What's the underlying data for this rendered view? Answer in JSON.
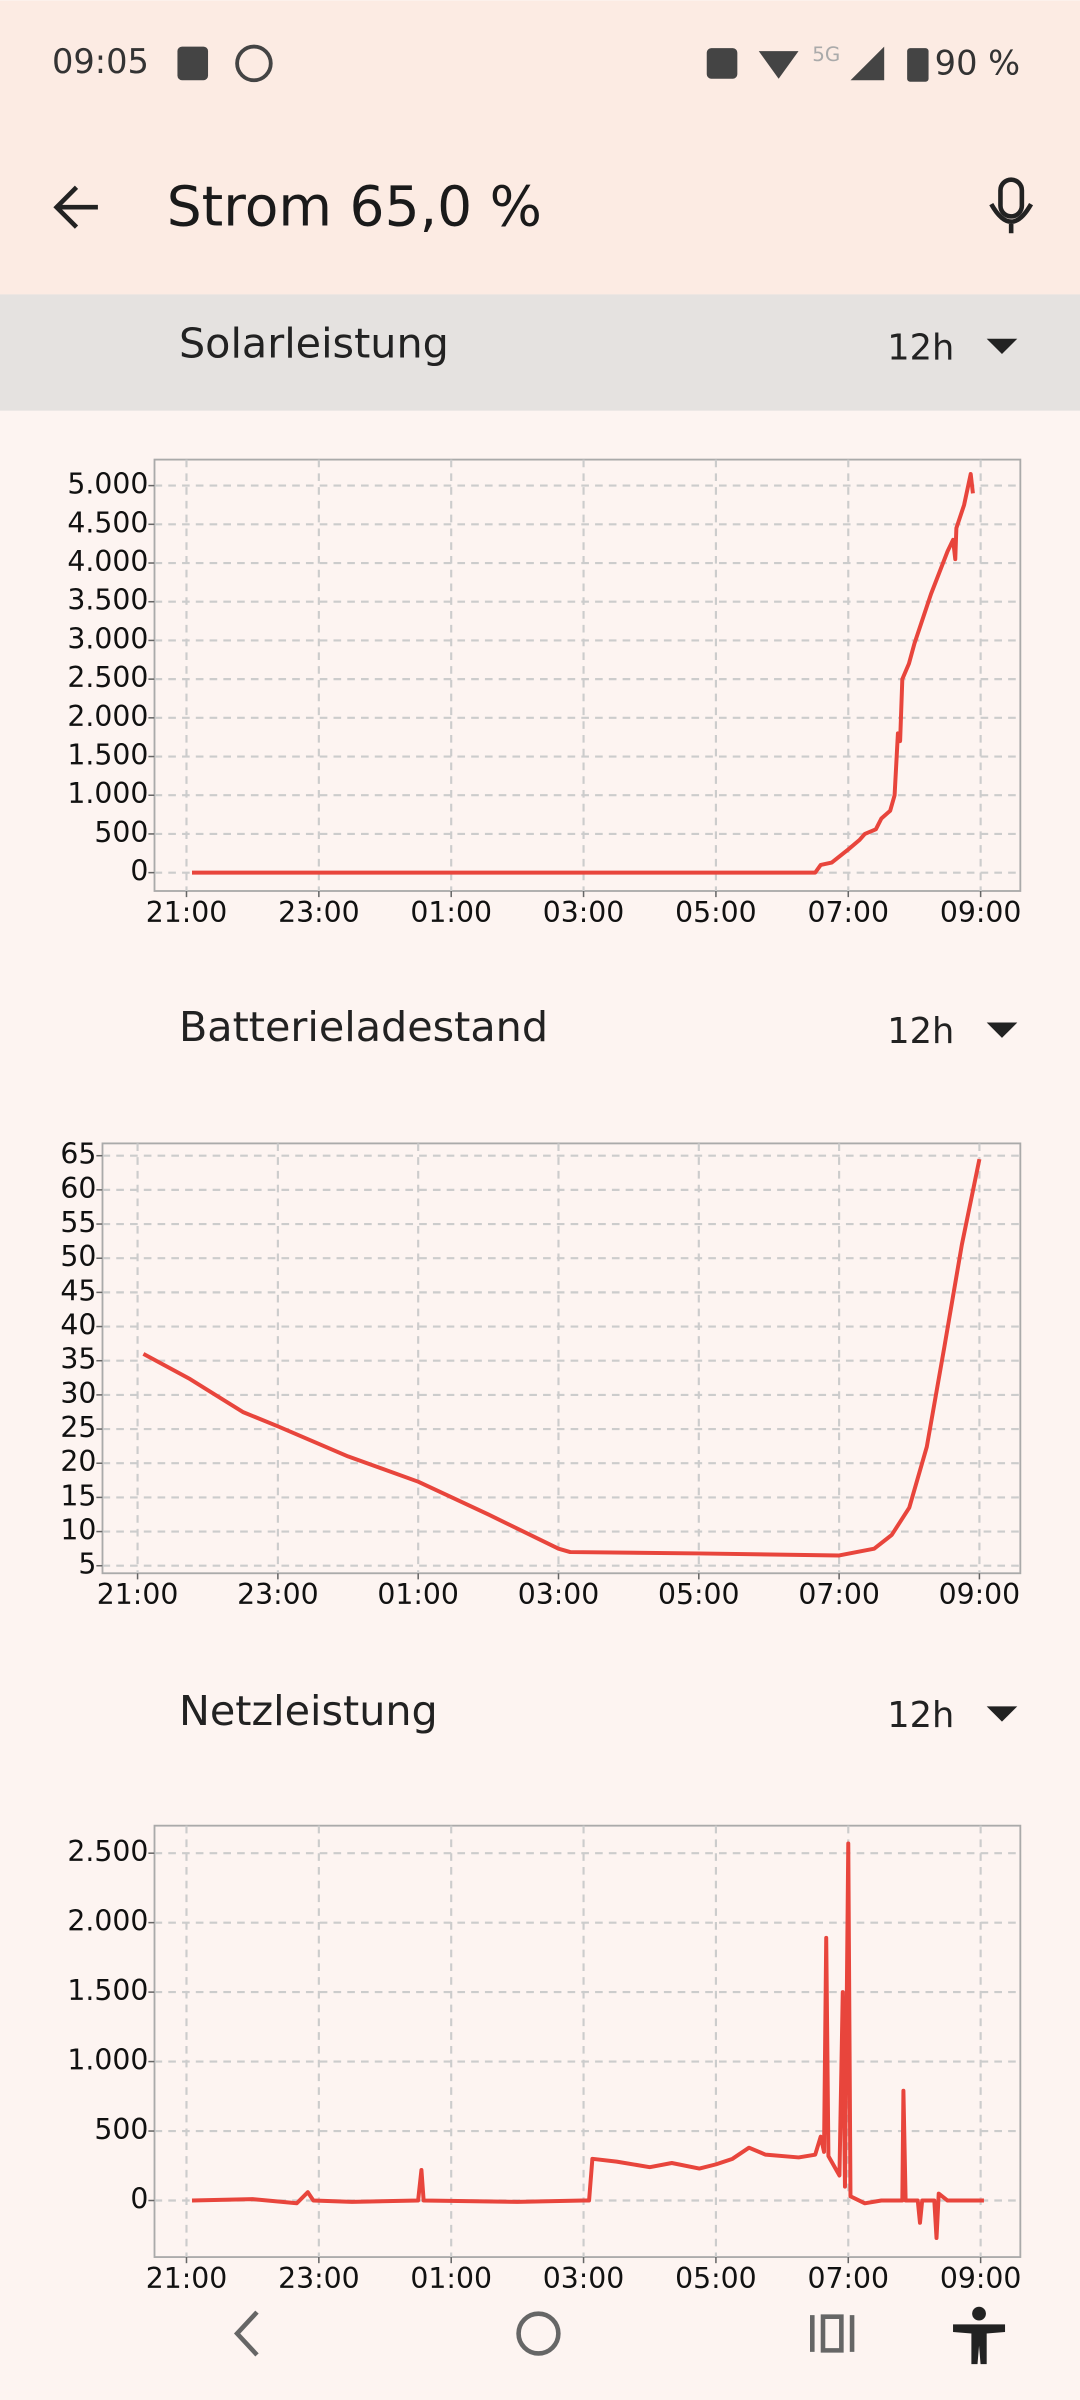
{
  "status_bar": {
    "time": "09:05",
    "network": "5G",
    "battery": "90 %"
  },
  "app_bar": {
    "title": "Strom 65,0 %"
  },
  "chart_data": [
    {
      "type": "line",
      "title": "Solarleistung",
      "range": "12h",
      "color": "#e8453c",
      "grid": true,
      "xlim": [
        "20:31",
        "09:36"
      ],
      "xticks": [
        "21:00",
        "23:00",
        "01:00",
        "03:00",
        "05:00",
        "07:00",
        "09:00"
      ],
      "ylim": [
        -237,
        5336
      ],
      "yticks": [
        0,
        500,
        {
          "value": 1000,
          "label": "1.000"
        },
        {
          "value": 1500,
          "label": "1.500"
        },
        {
          "value": 2000,
          "label": "2.000"
        },
        {
          "value": 2500,
          "label": "2.500"
        },
        {
          "value": 3000,
          "label": "3.000"
        },
        {
          "value": 3500,
          "label": "3.500"
        },
        {
          "value": 4000,
          "label": "4.000"
        },
        {
          "value": 4500,
          "label": "4.500"
        },
        {
          "value": 5000,
          "label": "5.000"
        }
      ],
      "x": [
        "21:05",
        "23:00",
        "01:00",
        "03:00",
        "05:00",
        "06:30",
        "06:35",
        "06:45",
        "07:00",
        "07:10",
        "07:15",
        "07:25",
        "07:30",
        "07:38",
        "07:42",
        "07:45",
        "07:47",
        "07:49",
        "07:55",
        "08:00",
        "08:15",
        "08:30",
        "08:35",
        "08:37",
        "08:38",
        "08:45",
        "08:51",
        "08:53"
      ],
      "values": [
        0,
        0,
        0,
        0,
        0,
        0,
        100,
        130,
        300,
        420,
        500,
        560,
        700,
        800,
        1000,
        1800,
        1700,
        2500,
        2700,
        2960,
        3600,
        4150,
        4300,
        4050,
        4450,
        4750,
        5150,
        4900
      ]
    },
    {
      "type": "line",
      "title": "Batterieladestand",
      "range": "12h",
      "color": "#e8453c",
      "grid": true,
      "xlim": [
        "20:30",
        "09:35"
      ],
      "xticks": [
        "21:00",
        "23:00",
        "01:00",
        "03:00",
        "05:00",
        "07:00",
        "09:00"
      ],
      "ylim": [
        3.9,
        66.8
      ],
      "yticks": [
        5,
        10,
        15,
        20,
        25,
        30,
        35,
        40,
        45,
        50,
        55,
        60,
        65
      ],
      "x": [
        "21:05",
        "21:45",
        "22:30",
        "23:00",
        "00:00",
        "01:00",
        "02:00",
        "03:00",
        "03:10",
        "05:00",
        "07:00",
        "07:30",
        "07:45",
        "08:00",
        "08:15",
        "08:30",
        "08:45",
        "09:00"
      ],
      "values": [
        36,
        32.3,
        27.5,
        25.4,
        21,
        17.3,
        12.5,
        7.5,
        7,
        6.8,
        6.5,
        7.5,
        9.5,
        13.5,
        22.4,
        37,
        52,
        64.5
      ]
    },
    {
      "type": "line",
      "title": "Netzleistung",
      "range": "12h",
      "color": "#e8453c",
      "grid": true,
      "xlim": [
        "20:31",
        "09:36"
      ],
      "xticks": [
        "21:00",
        "23:00",
        "01:00",
        "03:00",
        "05:00",
        "07:00",
        "09:00"
      ],
      "ylim": [
        -407,
        2698
      ],
      "yticks": [
        0,
        500,
        {
          "value": 1000,
          "label": "1.000"
        },
        {
          "value": 1500,
          "label": "1.500"
        },
        {
          "value": 2000,
          "label": "2.000"
        },
        {
          "value": 2500,
          "label": "2.500"
        }
      ],
      "x": [
        "21:05",
        "22:00",
        "22:40",
        "22:50",
        "22:55",
        "23:30",
        "00:30",
        "00:33",
        "00:35",
        "02:00",
        "03:00",
        "03:05",
        "03:08",
        "03:30",
        "04:00",
        "04:20",
        "04:45",
        "05:00",
        "05:15",
        "05:30",
        "05:45",
        "06:15",
        "06:30",
        "06:35",
        "06:38",
        "06:40",
        "06:42",
        "06:52",
        "06:55",
        "06:57",
        "07:00",
        "07:02",
        "07:15",
        "07:30",
        "07:49",
        "07:50",
        "07:52",
        "08:03",
        "08:05",
        "08:07",
        "08:18",
        "08:20",
        "08:22",
        "08:30",
        "09:03"
      ],
      "values": [
        0,
        10,
        -20,
        60,
        0,
        -10,
        0,
        220,
        0,
        -10,
        0,
        0,
        300,
        280,
        240,
        270,
        230,
        260,
        300,
        380,
        330,
        310,
        330,
        460,
        350,
        1890,
        320,
        180,
        1500,
        100,
        2570,
        30,
        -20,
        0,
        0,
        790,
        0,
        0,
        -160,
        0,
        0,
        -270,
        50,
        0,
        0
      ]
    }
  ]
}
